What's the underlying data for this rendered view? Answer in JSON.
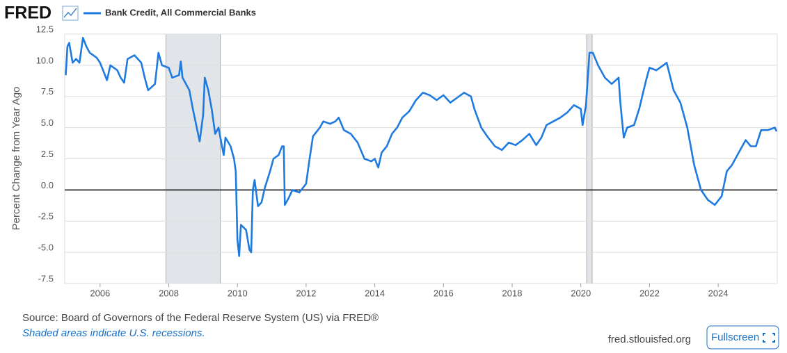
{
  "logo": "FRED",
  "source": "Source: Board of Governors of the Federal Reserve System (US) via FRED®",
  "note": "Shaded areas indicate U.S. recessions.",
  "site": "fred.stlouisfed.org",
  "button": "Fullscreen",
  "chart_data": {
    "type": "line",
    "ylabel": "Percent Change from Year Ago",
    "x": [
      2005.0,
      2005.05,
      2005.1,
      2005.2,
      2005.3,
      2005.4,
      2005.5,
      2005.6,
      2005.7,
      2005.9,
      2006.0,
      2006.1,
      2006.2,
      2006.3,
      2006.5,
      2006.6,
      2006.7,
      2006.8,
      2007.0,
      2007.2,
      2007.3,
      2007.4,
      2007.6,
      2007.7,
      2007.8,
      2008.0,
      2008.1,
      2008.3,
      2008.35,
      2008.4,
      2008.6,
      2008.7,
      2008.9,
      2009.0,
      2009.05,
      2009.15,
      2009.25,
      2009.35,
      2009.45,
      2009.55,
      2009.6,
      2009.65,
      2009.8,
      2009.9,
      2009.95,
      2010.0,
      2010.05,
      2010.1,
      2010.25,
      2010.35,
      2010.4,
      2010.45,
      2010.5,
      2010.6,
      2010.7,
      2010.8,
      2010.95,
      2011.05,
      2011.2,
      2011.3,
      2011.35,
      2011.38,
      2011.5,
      2011.6,
      2011.8,
      2012.0,
      2012.1,
      2012.2,
      2012.4,
      2012.5,
      2012.7,
      2012.85,
      2012.95,
      2013.1,
      2013.3,
      2013.5,
      2013.7,
      2013.9,
      2014.0,
      2014.1,
      2014.2,
      2014.35,
      2014.5,
      2014.65,
      2014.8,
      2015.0,
      2015.2,
      2015.4,
      2015.6,
      2015.8,
      2016.0,
      2016.2,
      2016.4,
      2016.6,
      2016.8,
      2016.9,
      2017.1,
      2017.3,
      2017.5,
      2017.7,
      2017.9,
      2018.1,
      2018.3,
      2018.5,
      2018.7,
      2018.85,
      2019.0,
      2019.2,
      2019.4,
      2019.6,
      2019.8,
      2020.0,
      2020.05,
      2020.15,
      2020.25,
      2020.35,
      2020.5,
      2020.7,
      2020.9,
      2021.1,
      2021.15,
      2021.25,
      2021.35,
      2021.55,
      2021.7,
      2021.9,
      2022.0,
      2022.2,
      2022.4,
      2022.5,
      2022.7,
      2022.9,
      2023.1,
      2023.3,
      2023.5,
      2023.7,
      2023.9,
      2024.1,
      2024.25,
      2024.4,
      2024.6,
      2024.8,
      2024.95,
      2025.1,
      2025.25,
      2025.45,
      2025.65,
      2025.7
    ],
    "series": [
      {
        "name": "Bank Credit, All Commercial Banks",
        "color": "#1f7ae0",
        "values": [
          9.2,
          11.5,
          11.8,
          10.2,
          10.5,
          10.2,
          12.2,
          11.5,
          11.0,
          10.6,
          10.2,
          9.5,
          8.8,
          10.0,
          9.6,
          9.0,
          8.6,
          10.5,
          10.8,
          10.2,
          9.0,
          8.0,
          8.5,
          11.0,
          10.0,
          9.8,
          9.0,
          9.2,
          10.3,
          9.0,
          8.0,
          6.5,
          3.9,
          6.0,
          9.0,
          8.0,
          6.5,
          4.5,
          5.0,
          3.5,
          2.8,
          4.2,
          3.5,
          2.5,
          1.5,
          -4.0,
          -5.3,
          -2.8,
          -3.2,
          -4.8,
          -5.0,
          0.0,
          0.8,
          -1.3,
          -1.0,
          0.2,
          1.5,
          2.5,
          2.8,
          3.5,
          3.5,
          -1.2,
          -0.6,
          0.0,
          -0.2,
          0.5,
          2.5,
          4.3,
          5.0,
          5.5,
          5.3,
          5.5,
          5.8,
          4.8,
          4.5,
          3.8,
          2.5,
          2.3,
          2.5,
          1.8,
          3.0,
          3.5,
          4.5,
          5.0,
          5.8,
          6.3,
          7.2,
          7.8,
          7.6,
          7.2,
          7.6,
          7.0,
          7.4,
          7.8,
          7.5,
          6.5,
          5.0,
          4.2,
          3.5,
          3.2,
          3.8,
          3.6,
          4.0,
          4.5,
          3.6,
          4.2,
          5.2,
          5.5,
          5.8,
          6.2,
          6.8,
          6.5,
          5.2,
          6.8,
          11.0,
          11.0,
          10.0,
          9.0,
          8.5,
          9.0,
          7.0,
          4.2,
          5.0,
          5.2,
          6.5,
          8.8,
          9.8,
          9.6,
          10.0,
          10.2,
          8.0,
          7.0,
          5.0,
          2.0,
          0.0,
          -0.8,
          -1.2,
          -0.5,
          1.5,
          2.0,
          3.0,
          4.0,
          3.5,
          3.5,
          4.8,
          4.8,
          5.0,
          4.7
        ]
      }
    ],
    "recessions": [
      [
        2007.92,
        2009.5
      ],
      [
        2020.17,
        2020.33
      ]
    ],
    "xlim": [
      2004.97,
      2025.72
    ],
    "xticks": [
      2006,
      2008,
      2010,
      2012,
      2014,
      2016,
      2018,
      2020,
      2022,
      2024
    ],
    "ylim": [
      -7.5,
      12.5
    ],
    "yticks": [
      -7.5,
      {
        "value": -5,
        "label": "-5.0"
      },
      -2.5,
      {
        "value": 0,
        "label": "0.0"
      },
      2.5,
      {
        "value": 5,
        "label": "5.0"
      },
      7.5,
      {
        "value": 10,
        "label": "10.0"
      },
      12.5
    ],
    "grid": true
  }
}
